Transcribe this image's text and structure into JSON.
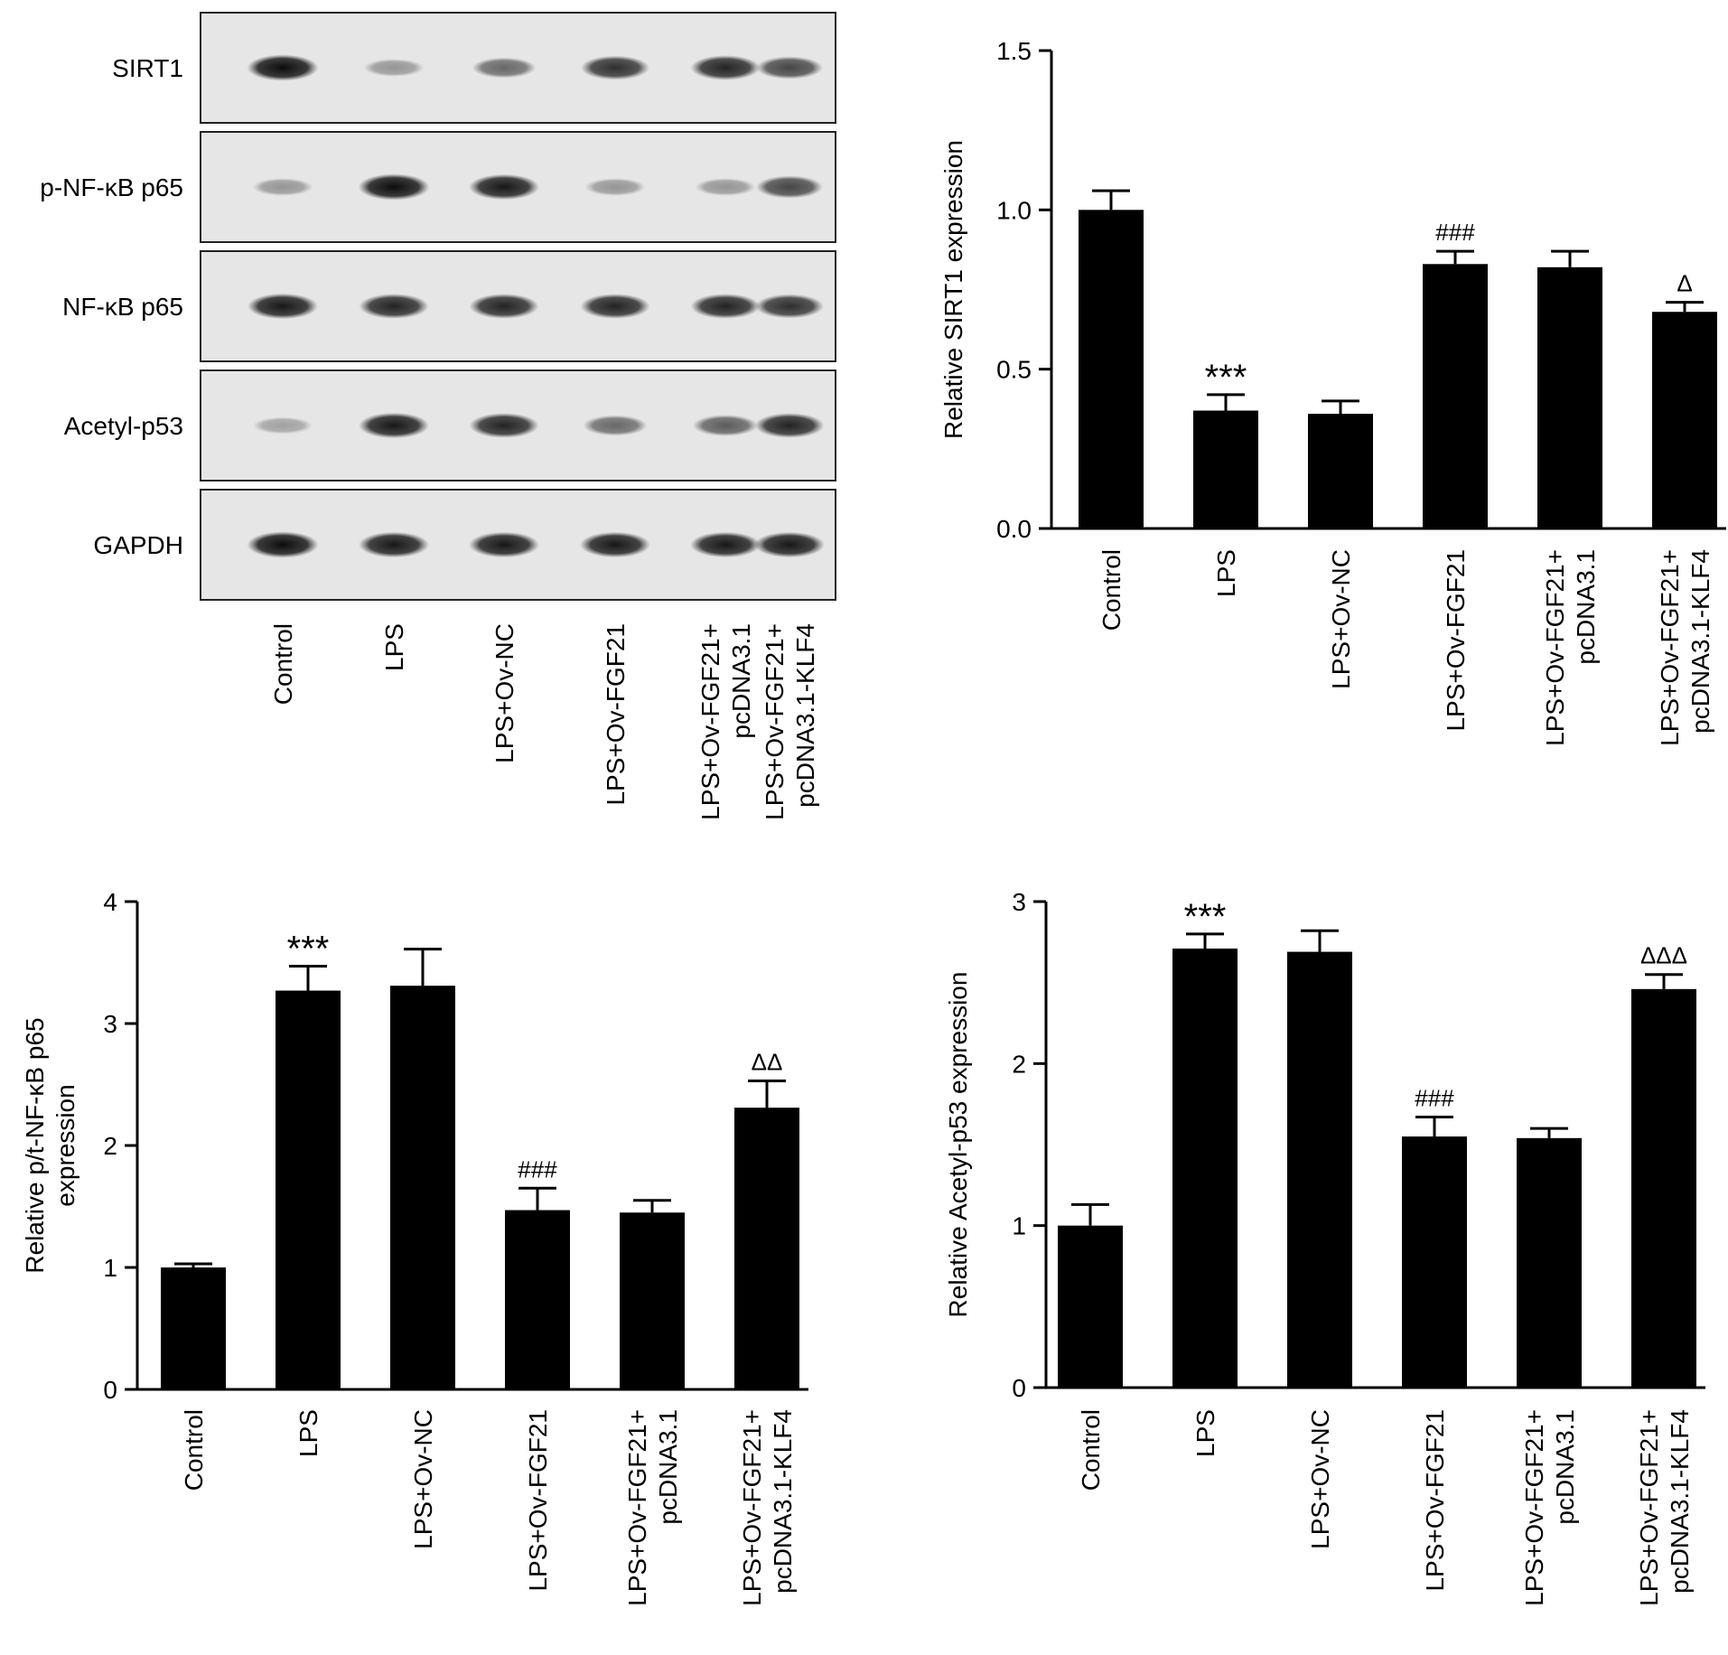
{
  "blot": {
    "rows": [
      {
        "label": "SIRT1",
        "intensity": [
          0.95,
          0.35,
          0.55,
          0.8,
          0.85,
          0.7
        ]
      },
      {
        "label": "p-NF-κB p65",
        "intensity": [
          0.35,
          0.95,
          0.9,
          0.35,
          0.35,
          0.7
        ]
      },
      {
        "label": "NF-κB p65",
        "intensity": [
          0.9,
          0.85,
          0.85,
          0.85,
          0.85,
          0.8
        ]
      },
      {
        "label": "Acetyl-p53",
        "intensity": [
          0.3,
          0.9,
          0.85,
          0.55,
          0.6,
          0.85
        ]
      },
      {
        "label": "GAPDH",
        "intensity": [
          0.95,
          0.9,
          0.9,
          0.9,
          0.9,
          0.9
        ]
      }
    ],
    "lanes": [
      [
        "Control"
      ],
      [
        "LPS"
      ],
      [
        "LPS+Ov-NC"
      ],
      [
        "LPS+Ov-FGF21"
      ],
      [
        "LPS+Ov-FGF21+",
        "pcDNA3.1"
      ],
      [
        "LPS+Ov-FGF21+",
        "pcDNA3.1-KLF4"
      ]
    ]
  },
  "chart_data": [
    {
      "id": "sirt1",
      "type": "bar",
      "categories": [
        [
          "Control"
        ],
        [
          "LPS"
        ],
        [
          "LPS+Ov-NC"
        ],
        [
          "LPS+Ov-FGF21"
        ],
        [
          "LPS+Ov-FGF21+",
          "pcDNA3.1"
        ],
        [
          "LPS+Ov-FGF21+",
          "pcDNA3.1-KLF4"
        ]
      ],
      "values": [
        1.0,
        0.37,
        0.36,
        0.83,
        0.82,
        0.68
      ],
      "errors": [
        0.06,
        0.05,
        0.04,
        0.04,
        0.05,
        0.03
      ],
      "annotations": [
        "",
        "***",
        "",
        "###",
        "",
        "Δ"
      ],
      "ylabel": [
        "Relative SIRT1 expression"
      ],
      "ylim": [
        0,
        1.5
      ],
      "yticks": [
        "0.0",
        "0.5",
        "1.0",
        "1.5"
      ],
      "ytick_values": [
        0,
        0.5,
        1.0,
        1.5
      ]
    },
    {
      "id": "nfkb",
      "type": "bar",
      "categories": [
        [
          "Control"
        ],
        [
          "LPS"
        ],
        [
          "LPS+Ov-NC"
        ],
        [
          "LPS+Ov-FGF21"
        ],
        [
          "LPS+Ov-FGF21+",
          "pcDNA3.1"
        ],
        [
          "LPS+Ov-FGF21+",
          "pcDNA3.1-KLF4"
        ]
      ],
      "values": [
        1.0,
        3.27,
        3.31,
        1.47,
        1.45,
        2.31
      ],
      "errors": [
        0.03,
        0.2,
        0.3,
        0.18,
        0.1,
        0.22
      ],
      "annotations": [
        "",
        "***",
        "",
        "###",
        "",
        "ΔΔ"
      ],
      "ylabel": [
        "Relative p/t-NF-κB p65",
        "expression"
      ],
      "ylim": [
        0,
        4
      ],
      "yticks": [
        "0",
        "1",
        "2",
        "3",
        "4"
      ],
      "ytick_values": [
        0,
        1,
        2,
        3,
        4
      ]
    },
    {
      "id": "p53",
      "type": "bar",
      "categories": [
        [
          "Control"
        ],
        [
          "LPS"
        ],
        [
          "LPS+Ov-NC"
        ],
        [
          "LPS+Ov-FGF21"
        ],
        [
          "LPS+Ov-FGF21+",
          "pcDNA3.1"
        ],
        [
          "LPS+Ov-FGF21+",
          "pcDNA3.1-KLF4"
        ]
      ],
      "values": [
        1.0,
        2.71,
        2.69,
        1.55,
        1.54,
        2.46
      ],
      "errors": [
        0.13,
        0.09,
        0.13,
        0.12,
        0.06,
        0.09
      ],
      "annotations": [
        "",
        "***",
        "",
        "###",
        "",
        "ΔΔΔ"
      ],
      "ylabel": [
        "Relative Acetyl-p53 expression"
      ],
      "ylim": [
        0,
        3
      ],
      "yticks": [
        "0",
        "1",
        "2",
        "3"
      ],
      "ytick_values": [
        0,
        1,
        2,
        3
      ]
    }
  ]
}
